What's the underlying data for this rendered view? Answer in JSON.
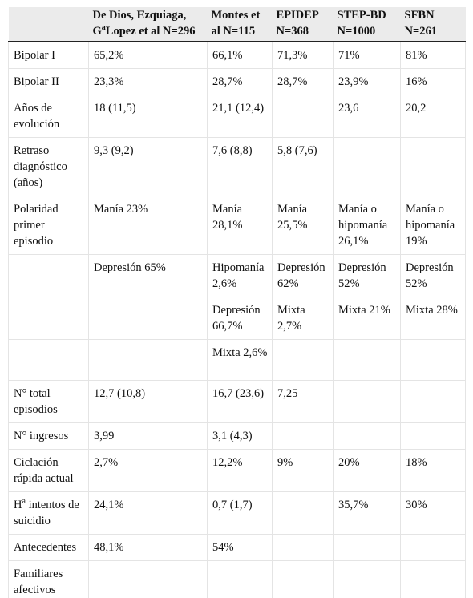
{
  "header": {
    "col1_line1": "De Dios, Ezquiaga,",
    "col1_line2_pre": "G",
    "col1_line2_sup": "a",
    "col1_line2_post": "Lopez et al N=296",
    "col2_line1": "Montes et",
    "col2_line2": "al N=115",
    "col3_line1": "EPIDEP",
    "col3_line2": "N=368",
    "col4_line1": "STEP-BD",
    "col4_line2": "N=1000",
    "col5_line1": "SFBN",
    "col5_line2": "N=261"
  },
  "rows": [
    {
      "label": "Bipolar I",
      "c1": "65,2%",
      "c2": "66,1%",
      "c3": "71,3%",
      "c4": "71%",
      "c5": "81%"
    },
    {
      "label": "Bipolar II",
      "c1": "23,3%",
      "c2": "28,7%",
      "c3": "28,7%",
      "c4": "23,9%",
      "c5": "16%"
    },
    {
      "label": "Años de evolución",
      "c1": "18 (11,5)",
      "c2": "21,1 (12,4)",
      "c3": "",
      "c4": "23,6",
      "c5": "20,2"
    },
    {
      "label": "Retraso diagnóstico (años)",
      "c1": "9,3 (9,2)",
      "c2": "7,6 (8,8)",
      "c3": "5,8 (7,6)",
      "c4": "",
      "c5": ""
    },
    {
      "label": "Polaridad primer episodio",
      "c1": "Manía 23%",
      "c2": "Manía 28,1%",
      "c3": "Manía 25,5%",
      "c4": "Manía o hipomanía 26,1%",
      "c5": "Manía o hipomanía 19%"
    },
    {
      "label": "",
      "c1": "Depresión 65%",
      "c2": "Hipomanía 2,6%",
      "c3": "Depresión 62%",
      "c4": "Depresión 52%",
      "c5": "Depresión 52%"
    },
    {
      "label": "",
      "c1": "",
      "c2": "Depresión 66,7%",
      "c3": "Mixta 2,7%",
      "c4": "Mixta 21%",
      "c5": "Mixta 28%"
    },
    {
      "label": "",
      "c1": "",
      "c2": "Mixta 2,6%",
      "c3": "",
      "c4": "",
      "c5": ""
    },
    {
      "label": "N° total episodios",
      "c1": "12,7 (10,8)",
      "c2": "16,7 (23,6)",
      "c3": "7,25",
      "c4": "",
      "c5": ""
    },
    {
      "label": "N° ingresos",
      "c1": "3,99",
      "c2": "3,1 (4,3)",
      "c3": "",
      "c4": "",
      "c5": ""
    },
    {
      "label": "Ciclación rápida actual",
      "c1": "2,7%",
      "c2": "12,2%",
      "c3": "9%",
      "c4": "20%",
      "c5": "18%"
    },
    {
      "label_pre": "H",
      "label_sup": "a",
      "label_post": " intentos de suicidio",
      "c1": "24,1%",
      "c2": "0,7 (1,7)",
      "c3": "",
      "c4": "35,7%",
      "c5": "30%"
    },
    {
      "label": "Antecedentes",
      "c1": "48,1%",
      "c2": "54%",
      "c3": "",
      "c4": "",
      "c5": ""
    },
    {
      "label": "Familiares afectivos",
      "c1": "",
      "c2": "",
      "c3": "",
      "c4": "",
      "c5": ""
    }
  ]
}
